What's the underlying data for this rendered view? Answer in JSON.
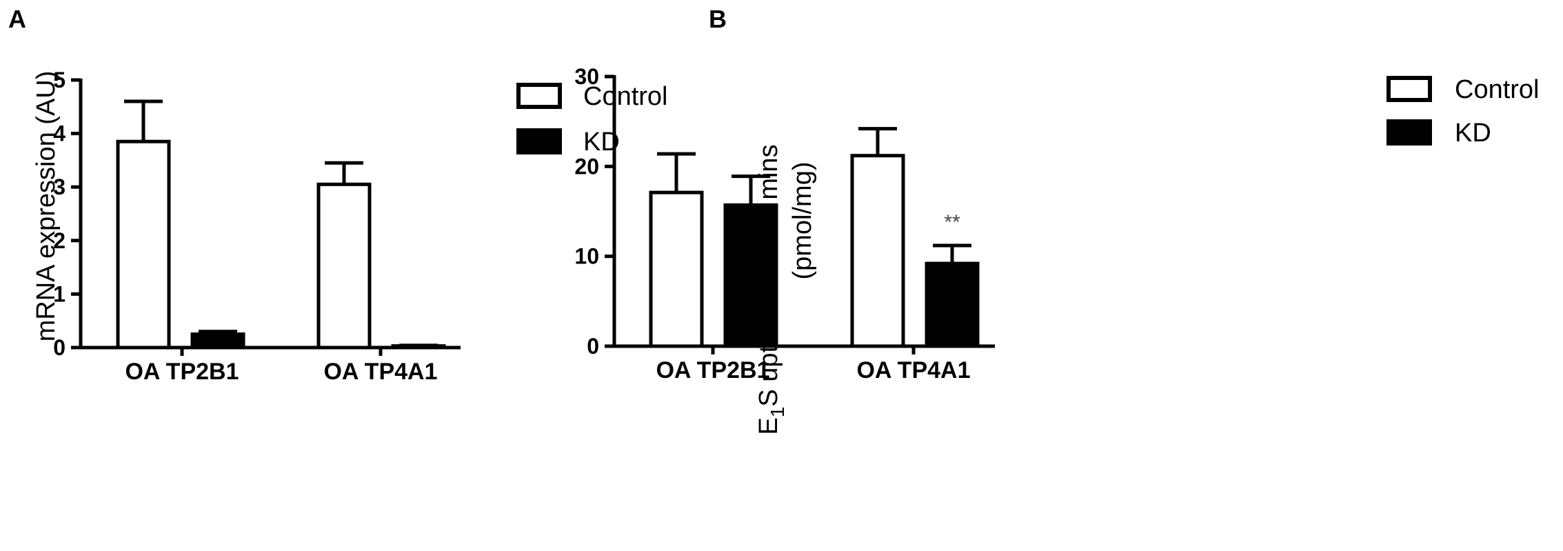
{
  "chart_data": [
    {
      "panel_label": "A",
      "type": "bar",
      "ylabel": "mRNA expression (AU)",
      "ylim": [
        0,
        5
      ],
      "yticks": [
        "0",
        "1",
        "2",
        "3",
        "4",
        "5"
      ],
      "categories": [
        "OA TP2B1",
        "OA TP4A1"
      ],
      "series": [
        {
          "name": "Control",
          "color": "#ffffff",
          "values": [
            3.85,
            3.05
          ],
          "errors": [
            0.75,
            0.4
          ]
        },
        {
          "name": "KD",
          "color": "#000000",
          "values": [
            0.25,
            0.03
          ],
          "errors": [
            0.05,
            0.01
          ]
        }
      ],
      "annotations": [],
      "legend": "top-right",
      "grid": false
    },
    {
      "panel_label": "B",
      "type": "bar",
      "ylabel_line1_main": "E",
      "ylabel_line1_sub": "1",
      "ylabel_line1_rest": "S uptake after 30 mins",
      "ylabel_line2": "(pmol/mg)",
      "ylim": [
        0,
        30
      ],
      "yticks": [
        "0",
        "10",
        "20",
        "30"
      ],
      "categories": [
        "OA TP2B1",
        "OA TP4A1"
      ],
      "series": [
        {
          "name": "Control",
          "color": "#ffffff",
          "values": [
            17.1,
            21.2
          ],
          "errors": [
            4.3,
            3.0
          ]
        },
        {
          "name": "KD",
          "color": "#000000",
          "values": [
            15.7,
            9.2
          ],
          "errors": [
            3.2,
            2.0
          ]
        }
      ],
      "annotations": [
        {
          "text": "**",
          "category": 1,
          "series": 1
        }
      ],
      "legend": "top-right",
      "grid": false
    }
  ]
}
